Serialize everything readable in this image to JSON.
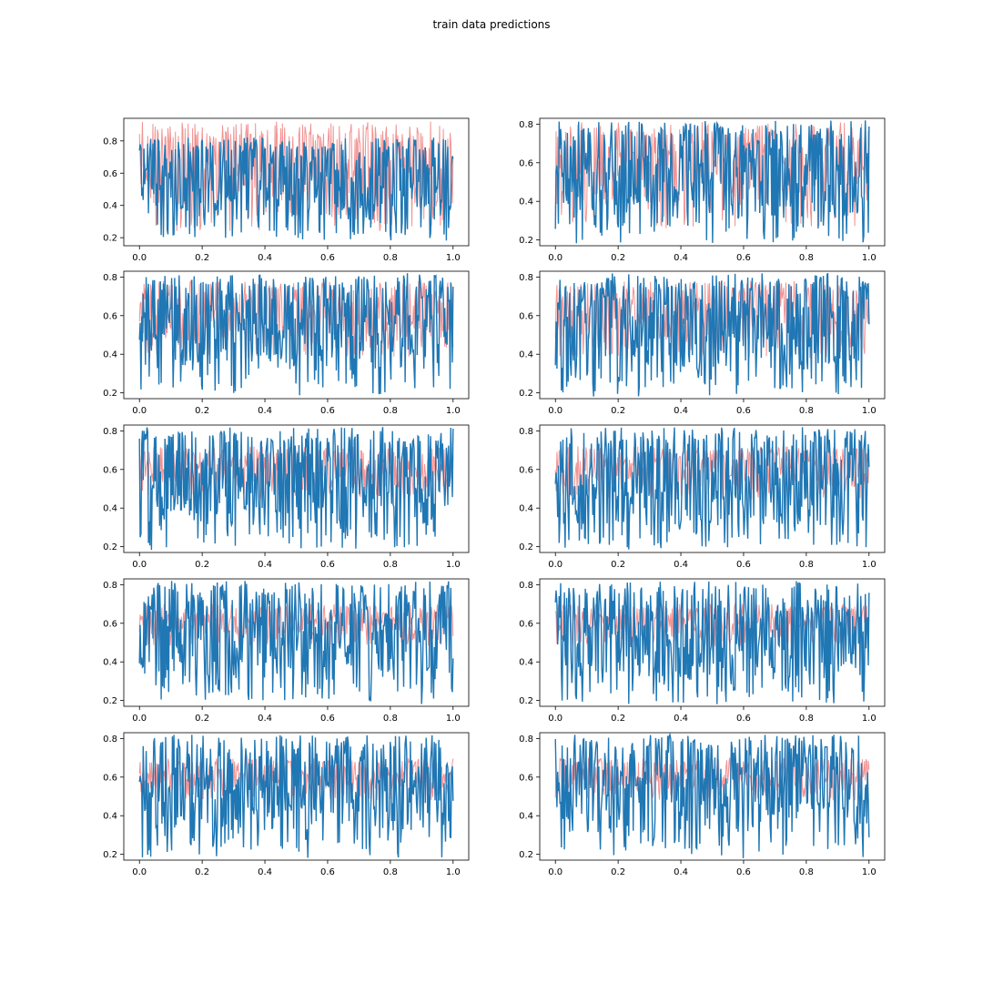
{
  "title": "train data predictions",
  "colors": {
    "target": "#f08080",
    "prediction": "#1f77b4"
  },
  "chart_data": [
    {
      "type": "line",
      "panel": 1,
      "xlim": [
        -0.05,
        1.05
      ],
      "ylim": [
        0.15,
        0.94
      ],
      "xticks": [
        0.0,
        0.2,
        0.4,
        0.6,
        0.8,
        1.0
      ],
      "yticks": [
        0.2,
        0.4,
        0.6,
        0.8
      ],
      "x_tick_labels": [
        "0.0",
        "0.2",
        "0.4",
        "0.6",
        "0.8",
        "1.0"
      ],
      "y_tick_labels": [
        "0.2",
        "0.4",
        "0.6",
        "0.8"
      ],
      "series": [
        {
          "color": "#f08080",
          "x_range": [
            0,
            1
          ],
          "y_range": [
            0.24,
            0.92
          ]
        },
        {
          "color": "#1f77b4",
          "x_range": [
            0,
            1
          ],
          "y_range": [
            0.18,
            0.82
          ]
        }
      ]
    },
    {
      "type": "line",
      "panel": 2,
      "xlim": [
        -0.05,
        1.05
      ],
      "ylim": [
        0.17,
        0.83
      ],
      "xticks": [
        0.0,
        0.2,
        0.4,
        0.6,
        0.8,
        1.0
      ],
      "yticks": [
        0.2,
        0.4,
        0.6,
        0.8
      ],
      "x_tick_labels": [
        "0.0",
        "0.2",
        "0.4",
        "0.6",
        "0.8",
        "1.0"
      ],
      "y_tick_labels": [
        "0.2",
        "0.4",
        "0.6",
        "0.8"
      ],
      "series": [
        {
          "color": "#f08080",
          "x_range": [
            0,
            1
          ],
          "y_range": [
            0.26,
            0.81
          ]
        },
        {
          "color": "#1f77b4",
          "x_range": [
            0,
            1
          ],
          "y_range": [
            0.18,
            0.82
          ]
        }
      ]
    },
    {
      "type": "line",
      "panel": 3,
      "xlim": [
        -0.05,
        1.05
      ],
      "ylim": [
        0.17,
        0.83
      ],
      "xticks": [
        0.0,
        0.2,
        0.4,
        0.6,
        0.8,
        1.0
      ],
      "yticks": [
        0.2,
        0.4,
        0.6,
        0.8
      ],
      "x_tick_labels": [
        "0.0",
        "0.2",
        "0.4",
        "0.6",
        "0.8",
        "1.0"
      ],
      "y_tick_labels": [
        "0.2",
        "0.4",
        "0.6",
        "0.8"
      ],
      "series": [
        {
          "color": "#f08080",
          "x_range": [
            0,
            1
          ],
          "y_range": [
            0.38,
            0.78
          ]
        },
        {
          "color": "#1f77b4",
          "x_range": [
            0,
            1
          ],
          "y_range": [
            0.18,
            0.82
          ]
        }
      ]
    },
    {
      "type": "line",
      "panel": 4,
      "xlim": [
        -0.05,
        1.05
      ],
      "ylim": [
        0.17,
        0.83
      ],
      "xticks": [
        0.0,
        0.2,
        0.4,
        0.6,
        0.8,
        1.0
      ],
      "yticks": [
        0.2,
        0.4,
        0.6,
        0.8
      ],
      "x_tick_labels": [
        "0.0",
        "0.2",
        "0.4",
        "0.6",
        "0.8",
        "1.0"
      ],
      "y_tick_labels": [
        "0.2",
        "0.4",
        "0.6",
        "0.8"
      ],
      "series": [
        {
          "color": "#f08080",
          "x_range": [
            0,
            1
          ],
          "y_range": [
            0.38,
            0.78
          ]
        },
        {
          "color": "#1f77b4",
          "x_range": [
            0,
            1
          ],
          "y_range": [
            0.18,
            0.82
          ]
        }
      ]
    },
    {
      "type": "line",
      "panel": 5,
      "xlim": [
        -0.05,
        1.05
      ],
      "ylim": [
        0.17,
        0.83
      ],
      "xticks": [
        0.0,
        0.2,
        0.4,
        0.6,
        0.8,
        1.0
      ],
      "yticks": [
        0.2,
        0.4,
        0.6,
        0.8
      ],
      "x_tick_labels": [
        "0.0",
        "0.2",
        "0.4",
        "0.6",
        "0.8",
        "1.0"
      ],
      "y_tick_labels": [
        "0.2",
        "0.4",
        "0.6",
        "0.8"
      ],
      "series": [
        {
          "color": "#f08080",
          "x_range": [
            0,
            1
          ],
          "y_range": [
            0.45,
            0.72
          ]
        },
        {
          "color": "#1f77b4",
          "x_range": [
            0,
            1
          ],
          "y_range": [
            0.18,
            0.82
          ]
        }
      ]
    },
    {
      "type": "line",
      "panel": 6,
      "xlim": [
        -0.05,
        1.05
      ],
      "ylim": [
        0.17,
        0.83
      ],
      "xticks": [
        0.0,
        0.2,
        0.4,
        0.6,
        0.8,
        1.0
      ],
      "yticks": [
        0.2,
        0.4,
        0.6,
        0.8
      ],
      "x_tick_labels": [
        "0.0",
        "0.2",
        "0.4",
        "0.6",
        "0.8",
        "1.0"
      ],
      "y_tick_labels": [
        "0.2",
        "0.4",
        "0.6",
        "0.8"
      ],
      "series": [
        {
          "color": "#f08080",
          "x_range": [
            0,
            1
          ],
          "y_range": [
            0.45,
            0.72
          ]
        },
        {
          "color": "#1f77b4",
          "x_range": [
            0,
            1
          ],
          "y_range": [
            0.18,
            0.82
          ]
        }
      ]
    },
    {
      "type": "line",
      "panel": 7,
      "xlim": [
        -0.05,
        1.05
      ],
      "ylim": [
        0.17,
        0.83
      ],
      "xticks": [
        0.0,
        0.2,
        0.4,
        0.6,
        0.8,
        1.0
      ],
      "yticks": [
        0.2,
        0.4,
        0.6,
        0.8
      ],
      "x_tick_labels": [
        "0.0",
        "0.2",
        "0.4",
        "0.6",
        "0.8",
        "1.0"
      ],
      "y_tick_labels": [
        "0.2",
        "0.4",
        "0.6",
        "0.8"
      ],
      "series": [
        {
          "color": "#f08080",
          "x_range": [
            0,
            1
          ],
          "y_range": [
            0.48,
            0.7
          ]
        },
        {
          "color": "#1f77b4",
          "x_range": [
            0,
            1
          ],
          "y_range": [
            0.18,
            0.82
          ]
        }
      ]
    },
    {
      "type": "line",
      "panel": 8,
      "xlim": [
        -0.05,
        1.05
      ],
      "ylim": [
        0.17,
        0.83
      ],
      "xticks": [
        0.0,
        0.2,
        0.4,
        0.6,
        0.8,
        1.0
      ],
      "yticks": [
        0.2,
        0.4,
        0.6,
        0.8
      ],
      "x_tick_labels": [
        "0.0",
        "0.2",
        "0.4",
        "0.6",
        "0.8",
        "1.0"
      ],
      "y_tick_labels": [
        "0.2",
        "0.4",
        "0.6",
        "0.8"
      ],
      "series": [
        {
          "color": "#f08080",
          "x_range": [
            0,
            1
          ],
          "y_range": [
            0.48,
            0.7
          ]
        },
        {
          "color": "#1f77b4",
          "x_range": [
            0,
            1
          ],
          "y_range": [
            0.18,
            0.82
          ]
        }
      ]
    },
    {
      "type": "line",
      "panel": 9,
      "xlim": [
        -0.05,
        1.05
      ],
      "ylim": [
        0.17,
        0.83
      ],
      "xticks": [
        0.0,
        0.2,
        0.4,
        0.6,
        0.8,
        1.0
      ],
      "yticks": [
        0.2,
        0.4,
        0.6,
        0.8
      ],
      "x_tick_labels": [
        "0.0",
        "0.2",
        "0.4",
        "0.6",
        "0.8",
        "1.0"
      ],
      "y_tick_labels": [
        "0.2",
        "0.4",
        "0.6",
        "0.8"
      ],
      "series": [
        {
          "color": "#f08080",
          "x_range": [
            0,
            1
          ],
          "y_range": [
            0.48,
            0.7
          ]
        },
        {
          "color": "#1f77b4",
          "x_range": [
            0,
            1
          ],
          "y_range": [
            0.18,
            0.82
          ]
        }
      ]
    },
    {
      "type": "line",
      "panel": 10,
      "xlim": [
        -0.05,
        1.05
      ],
      "ylim": [
        0.17,
        0.83
      ],
      "xticks": [
        0.0,
        0.2,
        0.4,
        0.6,
        0.8,
        1.0
      ],
      "yticks": [
        0.2,
        0.4,
        0.6,
        0.8
      ],
      "x_tick_labels": [
        "0.0",
        "0.2",
        "0.4",
        "0.6",
        "0.8",
        "1.0"
      ],
      "y_tick_labels": [
        "0.2",
        "0.4",
        "0.6",
        "0.8"
      ],
      "series": [
        {
          "color": "#f08080",
          "x_range": [
            0,
            1
          ],
          "y_range": [
            0.48,
            0.7
          ]
        },
        {
          "color": "#1f77b4",
          "x_range": [
            0,
            1
          ],
          "y_range": [
            0.18,
            0.82
          ]
        }
      ]
    }
  ]
}
